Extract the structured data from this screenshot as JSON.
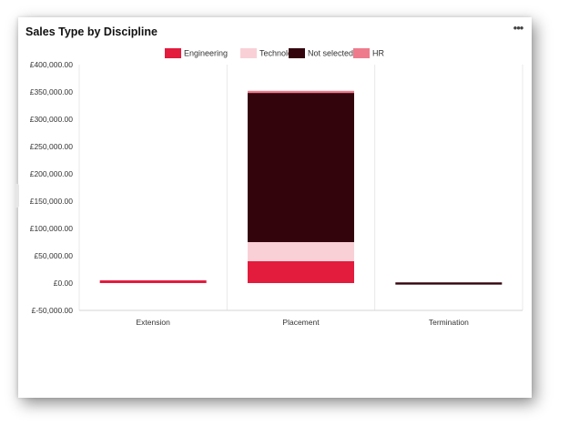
{
  "card": {
    "title": "Sales Type by Discipline",
    "menu_icon": "more-horizontal-icon"
  },
  "chart_data": {
    "type": "bar",
    "stacked": true,
    "title": "Sales Type by Discipline",
    "categories": [
      "Extension",
      "Placement",
      "Termination"
    ],
    "series": [
      {
        "name": "Engineering",
        "color": "#e31b3d",
        "values": [
          5000,
          40000,
          0
        ]
      },
      {
        "name": "Technology",
        "color": "#f9d0d6",
        "values": [
          0,
          35000,
          0
        ]
      },
      {
        "name": "Not selected",
        "color": "#34040d",
        "values": [
          0,
          274000,
          -1500
        ]
      },
      {
        "name": "HR",
        "color": "#ee7b8c",
        "values": [
          0,
          2000,
          0
        ]
      }
    ],
    "y_ticks": [
      "£400,000.00",
      "£350,000.00",
      "£300,000.00",
      "£250,000.00",
      "£200,000.00",
      "£150,000.00",
      "£100,000.00",
      "£50,000.00",
      "£0.00",
      "£-50,000.00"
    ],
    "ylim": [
      -50000,
      400000
    ],
    "legend_position": "top-center",
    "grid": "vertical separators"
  }
}
